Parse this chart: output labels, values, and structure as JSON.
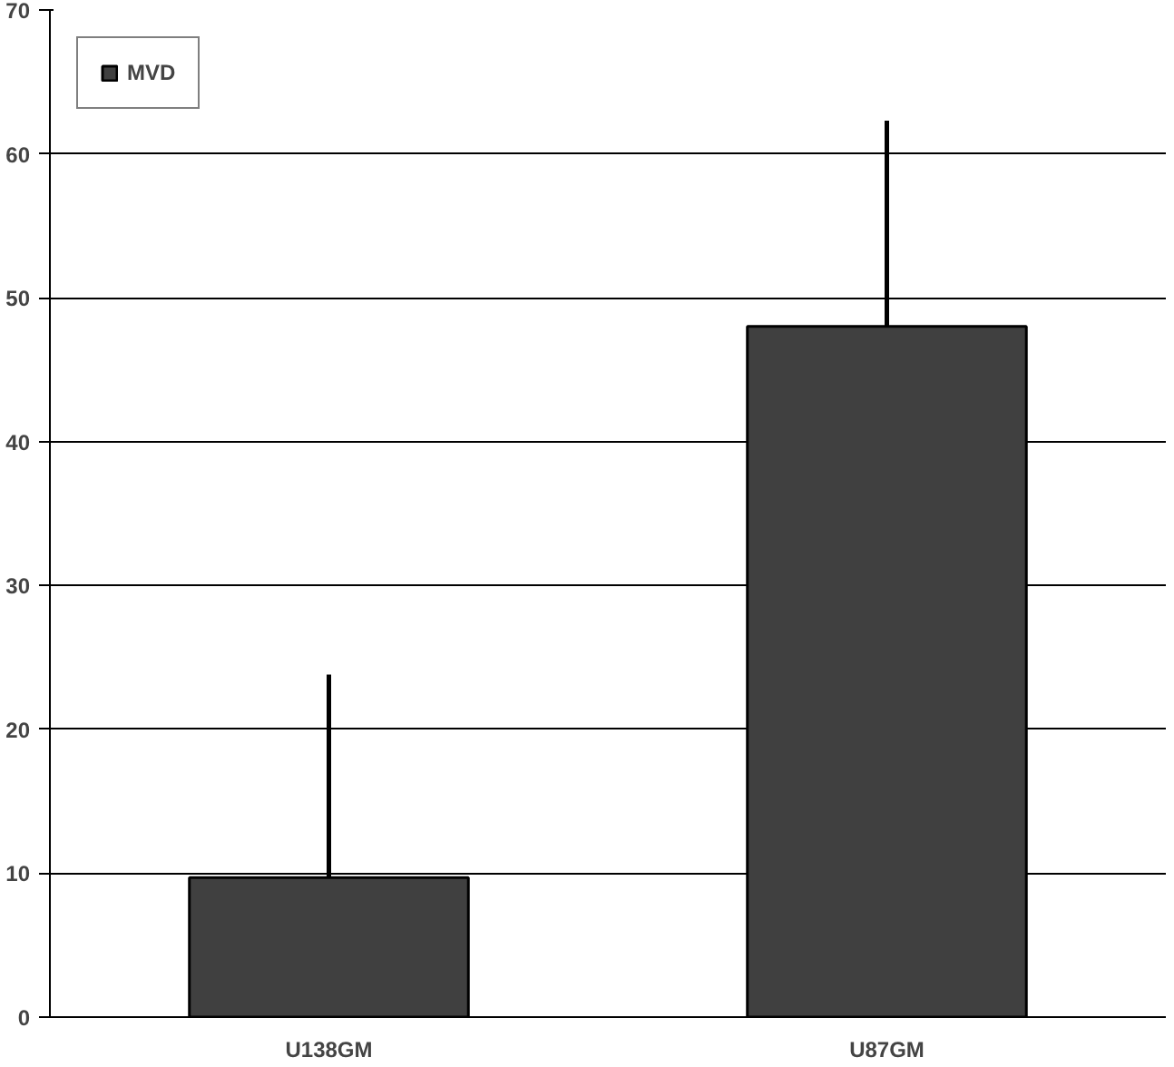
{
  "chart_data": {
    "type": "bar",
    "categories": [
      "U138GM",
      "U87GM"
    ],
    "series": [
      {
        "name": "MVD",
        "color": "#404040",
        "values": [
          9.7,
          48
        ],
        "errors": [
          [
            9.7,
            23.8
          ],
          [
            48,
            62.3
          ]
        ]
      }
    ],
    "ylim": [
      0,
      70
    ],
    "yticks": [
      0,
      10,
      20,
      30,
      40,
      50,
      60,
      70
    ],
    "grid": "y",
    "legend": "top left"
  }
}
